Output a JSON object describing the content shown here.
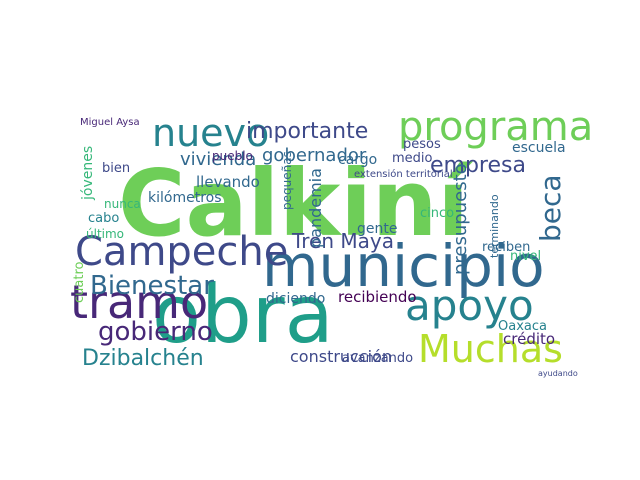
{
  "wordcloud": {
    "palette": [
      "#440154",
      "#482878",
      "#3e4989",
      "#31688e",
      "#26828e",
      "#1f9e89",
      "#35b779",
      "#6ece58",
      "#b5de2b",
      "#fde725"
    ],
    "words": [
      {
        "text": "Calkiní",
        "color": "#6ece58",
        "vertical": false
      },
      {
        "text": "obra",
        "color": "#1f9e89",
        "vertical": false
      },
      {
        "text": "municipio",
        "color": "#31688e",
        "vertical": false
      },
      {
        "text": "Campeche",
        "color": "#3e4989",
        "vertical": false
      },
      {
        "text": "tramo",
        "color": "#482878",
        "vertical": false
      },
      {
        "text": "programa",
        "color": "#6ece58",
        "vertical": false
      },
      {
        "text": "apoyo",
        "color": "#26828e",
        "vertical": false
      },
      {
        "text": "nuevo",
        "color": "#26828e",
        "vertical": false
      },
      {
        "text": "Muchas",
        "color": "#b5de2b",
        "vertical": false
      },
      {
        "text": "Bienestar",
        "color": "#31688e",
        "vertical": false
      },
      {
        "text": "importante",
        "color": "#3e4989",
        "vertical": false
      },
      {
        "text": "gobierno",
        "color": "#482878",
        "vertical": false
      },
      {
        "text": "Dzibalchén",
        "color": "#26828e",
        "vertical": false
      },
      {
        "text": "beca",
        "color": "#31688e",
        "vertical": true
      },
      {
        "text": "empresa",
        "color": "#3e4989",
        "vertical": false
      },
      {
        "text": "gobernador",
        "color": "#31688e",
        "vertical": false
      },
      {
        "text": "presupuesto",
        "color": "#31688e",
        "vertical": true
      },
      {
        "text": "Tren Maya",
        "color": "#3e4989",
        "vertical": false
      },
      {
        "text": "vivienda",
        "color": "#31688e",
        "vertical": false
      },
      {
        "text": "recibiendo",
        "color": "#440154",
        "vertical": false
      },
      {
        "text": "construcción",
        "color": "#3e4989",
        "vertical": false
      },
      {
        "text": "kilómetros",
        "color": "#31688e",
        "vertical": false
      },
      {
        "text": "escuela",
        "color": "#31688e",
        "vertical": false
      },
      {
        "text": "llevando",
        "color": "#31688e",
        "vertical": false
      },
      {
        "text": "pandemia",
        "color": "#31688e",
        "vertical": true
      },
      {
        "text": "diciendo",
        "color": "#31688e",
        "vertical": false
      },
      {
        "text": "crédito",
        "color": "#482878",
        "vertical": false
      },
      {
        "text": "Oaxaca",
        "color": "#26828e",
        "vertical": false
      },
      {
        "text": "reciben",
        "color": "#31688e",
        "vertical": false
      },
      {
        "text": "avanzando",
        "color": "#3e4989",
        "vertical": false
      },
      {
        "text": "cargo",
        "color": "#31688e",
        "vertical": false
      },
      {
        "text": "gente",
        "color": "#31688e",
        "vertical": false
      },
      {
        "text": "cinco",
        "color": "#35b779",
        "vertical": false
      },
      {
        "text": "nivel",
        "color": "#35b779",
        "vertical": false
      },
      {
        "text": "jóvenes",
        "color": "#35b779",
        "vertical": true
      },
      {
        "text": "pesos",
        "color": "#3e4989",
        "vertical": false
      },
      {
        "text": "medio",
        "color": "#3e4989",
        "vertical": false
      },
      {
        "text": "pueblo",
        "color": "#482878",
        "vertical": false
      },
      {
        "text": "bien",
        "color": "#3e4989",
        "vertical": false
      },
      {
        "text": "cabo",
        "color": "#26828e",
        "vertical": false
      },
      {
        "text": "nunca",
        "color": "#35b779",
        "vertical": false
      },
      {
        "text": "último",
        "color": "#35b779",
        "vertical": false
      },
      {
        "text": "pequeñas",
        "color": "#31688e",
        "vertical": true
      },
      {
        "text": "cuatro",
        "color": "#6ece58",
        "vertical": true
      },
      {
        "text": "terminando",
        "color": "#31688e",
        "vertical": true
      },
      {
        "text": "extensión territorial",
        "color": "#3e4989",
        "vertical": false
      },
      {
        "text": "Miguel Aysa",
        "color": "#482878",
        "vertical": false
      },
      {
        "text": "ayudando",
        "color": "#3e4989",
        "vertical": false
      }
    ]
  }
}
